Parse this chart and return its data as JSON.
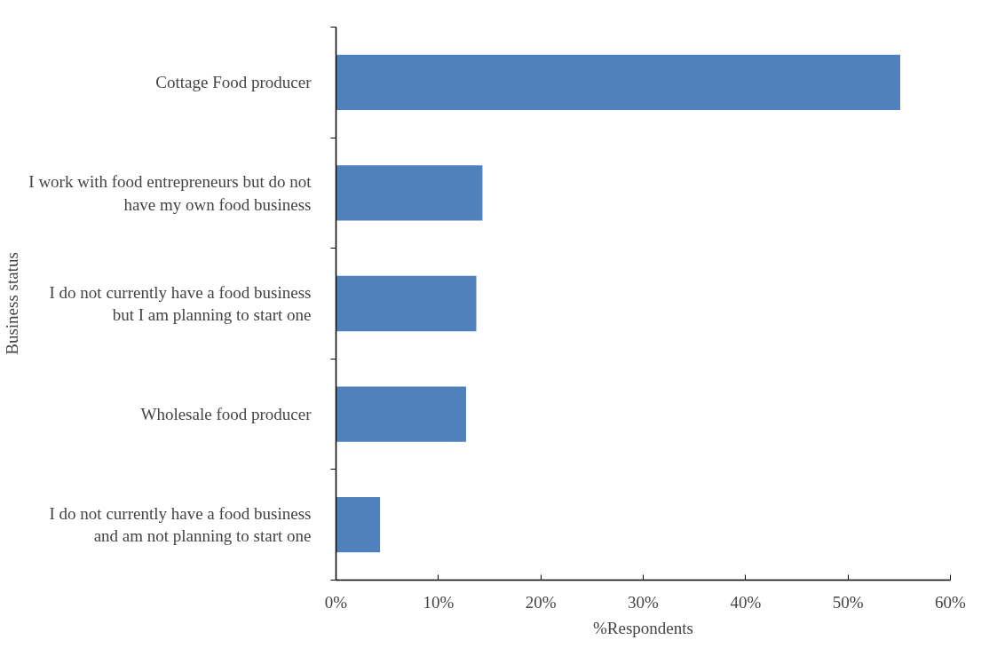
{
  "chart_data": {
    "type": "bar",
    "orientation": "horizontal",
    "xlabel": "%Respondents",
    "ylabel": "Business status",
    "categories": [
      "Cottage Food producer",
      "I work with food entrepreneurs but do not\nhave my own food business",
      "I do not currently have a food business\nbut I am planning to start one",
      "Wholesale food producer",
      "I do not currently have a food business\nand am not planning to start one"
    ],
    "values": [
      55.1,
      14.3,
      13.7,
      12.7,
      4.3
    ],
    "color": "#4f81bd",
    "xlim": [
      0,
      60
    ],
    "xticks": [
      {
        "value": 0,
        "label": "0%"
      },
      {
        "value": 10,
        "label": "10%"
      },
      {
        "value": 20,
        "label": "20%"
      },
      {
        "value": 30,
        "label": "30%"
      },
      {
        "value": 40,
        "label": "40%"
      },
      {
        "value": 50,
        "label": "50%"
      },
      {
        "value": 60,
        "label": "60%"
      }
    ],
    "grid": false
  }
}
